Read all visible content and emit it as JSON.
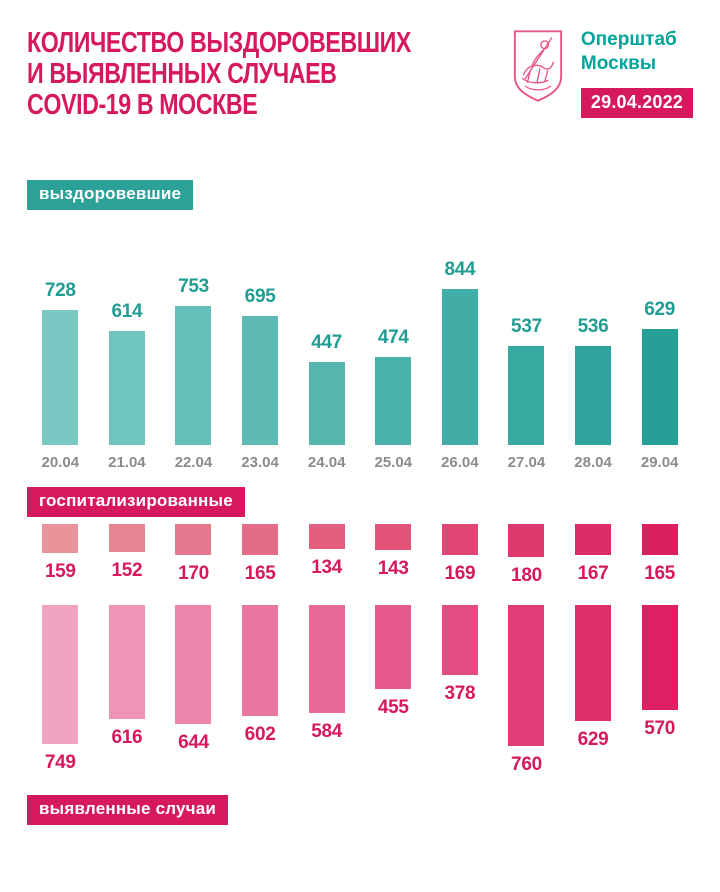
{
  "header": {
    "title_lines": [
      "КОЛИЧЕСТВО ВЫЗДОРОВЕВШИХ",
      "И ВЫЯВЛЕННЫХ СЛУЧАЕВ",
      "COVID-19 В МОСКВЕ"
    ],
    "org_name_lines": [
      "Оперштаб",
      "Москвы"
    ],
    "date_badge": "29.04.2022",
    "logo_icon": "moscow-coat-of-arms"
  },
  "colors": {
    "primary_pink": "#d6195e",
    "teal_text": "#00a59b",
    "teal_badge_bg": "#2ba197",
    "recovered_label": "#219c93",
    "date_axis_gray": "#898b8d",
    "background": "#ffffff"
  },
  "chart_data": [
    {
      "type": "bar",
      "title": "выздоровевшие",
      "categories": [
        "20.04",
        "21.04",
        "22.04",
        "23.04",
        "24.04",
        "25.04",
        "26.04",
        "27.04",
        "28.04",
        "29.04"
      ],
      "values": [
        728,
        614,
        753,
        695,
        447,
        474,
        844,
        537,
        536,
        629
      ],
      "direction": "up",
      "value_labels": "above bars",
      "grid": false,
      "ylim": [
        0,
        900
      ],
      "bar_color_start": "#79c8c3",
      "bar_color_end": "#26a097",
      "label_color": "#219c93"
    },
    {
      "type": "bar",
      "title": "госпитализированные",
      "categories": [
        "20.04",
        "21.04",
        "22.04",
        "23.04",
        "24.04",
        "25.04",
        "26.04",
        "27.04",
        "28.04",
        "29.04"
      ],
      "values": [
        159,
        152,
        170,
        165,
        134,
        143,
        169,
        180,
        167,
        165
      ],
      "direction": "down",
      "value_labels": "below bars",
      "grid": false,
      "ylim": [
        0,
        200
      ],
      "bar_color_start": "#e9939a",
      "bar_color_end": "#da1f5f",
      "label_color": "#d6195e"
    },
    {
      "type": "bar",
      "title": "выявленные случаи",
      "categories": [
        "20.04",
        "21.04",
        "22.04",
        "23.04",
        "24.04",
        "25.04",
        "26.04",
        "27.04",
        "28.04",
        "29.04"
      ],
      "values": [
        749,
        616,
        644,
        602,
        584,
        455,
        378,
        760,
        629,
        570
      ],
      "direction": "down",
      "value_labels": "below bars",
      "grid": false,
      "ylim": [
        0,
        800
      ],
      "bar_color_start": "#f0a3c1",
      "bar_color_end": "#de1f63",
      "label_color": "#d6195e"
    }
  ]
}
